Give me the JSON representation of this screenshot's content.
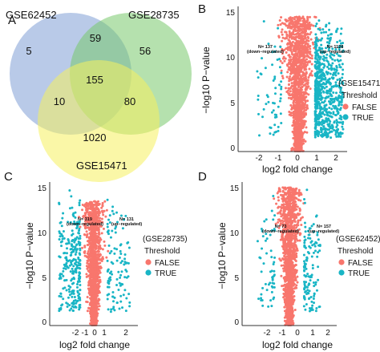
{
  "panels": {
    "A": "A",
    "B": "B",
    "C": "C",
    "D": "D"
  },
  "colors": {
    "false_point": "#F8766D",
    "true_point": "#19B5C5",
    "venn_blue": "#7F9FD6",
    "venn_green": "#79C96B",
    "venn_yellow": "#F5F05E",
    "axis": "#333333"
  },
  "venn": {
    "sets": [
      "GSE62452",
      "GSE28735",
      "GSE15471"
    ],
    "regions": {
      "only_62452": "5",
      "only_28735": "56",
      "only_15471": "1020",
      "62452_28735": "59",
      "62452_15471": "10",
      "28735_15471": "80",
      "all_three": "155"
    }
  },
  "chart_data": [
    {
      "panel": "B",
      "type": "scatter",
      "dataset": "(GSE15471)",
      "xlabel": "log2 fold change",
      "ylabel": "−log10 P−value",
      "xlim": [
        -3.2,
        2.6
      ],
      "ylim": [
        0,
        15.6
      ],
      "xticks": [
        -2,
        -1,
        0,
        1,
        2
      ],
      "yticks": [
        0,
        5,
        10,
        15
      ],
      "legend": {
        "title": "Threshold",
        "items": [
          "FALSE",
          "TRUE"
        ],
        "position": "right"
      },
      "annotations": [
        {
          "text": "N= 137",
          "text2": "(down−regulated)",
          "x": -1.1,
          "y": 10.6
        },
        {
          "text": "N= 1128",
          "text2": "(up−regulated)",
          "x": 1.9,
          "y": 10.6
        }
      ],
      "series": [
        {
          "name": "FALSE",
          "count": 1600,
          "shape": "volcano",
          "spread": 0.62,
          "ymax": 14.5
        },
        {
          "name": "TRUE",
          "count_down": 60,
          "count_up": 700,
          "up_x": [
            0.9,
            2.4
          ],
          "down_x": [
            -2.2,
            -0.9
          ],
          "ymax": 14.5
        }
      ]
    },
    {
      "panel": "C",
      "type": "scatter",
      "dataset": "(GSE28735)",
      "xlabel": "log2 fold change",
      "ylabel": "−log10 P−value",
      "xlim": [
        -2.9,
        2.9
      ],
      "ylim": [
        0,
        15.6
      ],
      "xticks": [
        -2,
        -1,
        0,
        1,
        2
      ],
      "yticks": [
        0,
        5,
        10,
        15
      ],
      "legend": {
        "title": "Threshold",
        "items": [
          "FALSE",
          "TRUE"
        ],
        "position": "right"
      },
      "annotations": [
        {
          "text": "N= 319",
          "text2": "(down−regulated)",
          "x": -1.3,
          "y": 11.0
        },
        {
          "text": "N= 131",
          "text2": "(up−regulated)",
          "x": 1.2,
          "y": 11.0
        }
      ],
      "series": [
        {
          "name": "FALSE",
          "count": 1400,
          "shape": "volcano",
          "spread": 0.45,
          "ymax": 13.5
        },
        {
          "name": "TRUE",
          "count_down": 260,
          "count_up": 110,
          "up_x": [
            0.9,
            2.4
          ],
          "down_x": [
            -2.3,
            -0.9
          ],
          "ymax": 15
        }
      ]
    },
    {
      "panel": "D",
      "type": "scatter",
      "dataset": "(GSE62452)",
      "xlabel": "log2 fold change",
      "ylabel": "−log10 P−value",
      "xlim": [
        -2.9,
        2.9
      ],
      "ylim": [
        0,
        15.6
      ],
      "xticks": [
        -2,
        -1,
        0,
        1,
        2
      ],
      "yticks": [
        0,
        5,
        10,
        15
      ],
      "legend": {
        "title": "Threshold",
        "items": [
          "FALSE",
          "TRUE"
        ],
        "position": "right"
      },
      "annotations": [
        {
          "text": "N= 73",
          "text2": "(down−regulated)",
          "x": -1.1,
          "y": 10.0
        },
        {
          "text": "N= 157",
          "text2": "(up−regulated)",
          "x": 1.6,
          "y": 10.0
        }
      ],
      "series": [
        {
          "name": "FALSE",
          "count": 1500,
          "shape": "volcano",
          "spread": 0.45,
          "ymax": 15
        },
        {
          "name": "TRUE",
          "count_down": 60,
          "count_up": 130,
          "up_x": [
            0.9,
            1.9
          ],
          "down_x": [
            -2.0,
            -0.9
          ],
          "ymax": 15
        }
      ]
    }
  ]
}
